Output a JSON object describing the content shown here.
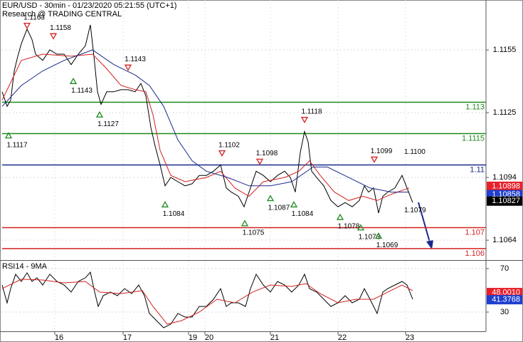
{
  "chart_data": [
    {
      "type": "line",
      "title": "EUR/USD - 30min - 01/23/2020 05:21:55 (UTC+1)",
      "subtitle": "Research @ TRADING CENTRAL",
      "xlim": [
        0,
        340
      ],
      "ylim": [
        1.10545,
        1.11789
      ],
      "yticks": [
        1.1155,
        1.1125,
        1.1094,
        1.1064
      ],
      "grid": true,
      "series": [
        {
          "color": "#000000",
          "x": [
            0,
            3.5,
            6,
            8.5,
            11,
            13.5,
            17.5,
            21,
            23.5,
            28.5,
            33.5,
            38.5,
            43.5,
            48.5,
            53.5,
            58.5,
            62,
            64.5,
            67,
            69.5,
            73.5,
            78.5,
            83.5,
            88.5,
            93.5,
            97.5,
            101,
            104.5,
            107.5,
            111,
            114.5,
            118.5,
            123.5,
            128.5,
            133.5,
            138.5,
            143.5,
            148.5,
            153.5,
            157.5,
            161,
            166,
            170,
            173.5,
            178.5,
            183.5,
            188.5,
            193.5,
            198.5,
            202.5,
            206,
            209.5,
            212.5,
            215,
            217.5,
            221,
            226,
            231,
            236,
            241,
            246,
            251,
            254.5,
            257.5,
            261,
            264.5,
            267.5,
            271,
            276,
            281,
            284.5,
            288.5
          ],
          "values": [
            1.1135,
            1.1128,
            1.1131,
            1.1145,
            1.1152,
            1.1158,
            1.1165,
            1.116,
            1.1153,
            1.115,
            1.1155,
            1.1153,
            1.1153,
            1.1148,
            1.1153,
            1.1157,
            1.1167,
            1.1152,
            1.1135,
            1.1129,
            1.1135,
            1.1135,
            1.1136,
            1.1136,
            1.1135,
            1.1139,
            1.1133,
            1.1118,
            1.1109,
            1.11,
            1.109,
            1.1094,
            1.1092,
            1.109,
            1.1091,
            1.1095,
            1.1095,
            1.1097,
            1.11,
            1.1089,
            1.1087,
            1.1085,
            1.108,
            1.1087,
            1.1097,
            1.1095,
            1.1092,
            1.1095,
            1.1097,
            1.1094,
            1.1087,
            1.1106,
            1.1116,
            1.1111,
            1.1097,
            1.1094,
            1.109,
            1.1083,
            1.108,
            1.1082,
            1.108,
            1.1083,
            1.109,
            1.1087,
            1.1089,
            1.1077,
            1.1085,
            1.1087,
            1.1089,
            1.1095,
            1.1089,
            1.1082
          ]
        },
        {
          "color": "#d42020",
          "x": [
            0,
            13.5,
            28.5,
            48.5,
            63.5,
            73.5,
            83.5,
            93.5,
            101,
            106,
            111,
            118.5,
            128.5,
            143.5,
            153.5,
            163.5,
            173.5,
            183.5,
            198.5,
            208.5,
            216,
            223.5,
            233.5,
            243.5,
            253.5,
            263.5,
            273.5,
            286
          ],
          "values": [
            1.1131,
            1.115,
            1.1153,
            1.1152,
            1.1153,
            1.1146,
            1.1138,
            1.1136,
            1.1135,
            1.1124,
            1.1107,
            1.1095,
            1.1092,
            1.1094,
            1.1097,
            1.1089,
            1.1085,
            1.1092,
            1.1094,
            1.1097,
            1.1102,
            1.1095,
            1.1087,
            1.1083,
            1.1085,
            1.1083,
            1.1086,
            1.1089
          ]
        },
        {
          "color": "#1b2a8a",
          "x": [
            0,
            13.5,
            28.5,
            43.5,
            63.5,
            78.5,
            93.5,
            103.5,
            113.5,
            123.5,
            133.5,
            143.5,
            158.5,
            173.5,
            188.5,
            203.5,
            218.5,
            228.5,
            243.5,
            258.5,
            273.5,
            286
          ],
          "values": [
            1.1128,
            1.1138,
            1.1145,
            1.115,
            1.1155,
            1.1148,
            1.1143,
            1.1138,
            1.1128,
            1.1112,
            1.1102,
            1.1097,
            1.1094,
            1.109,
            1.109,
            1.1092,
            1.1099,
            1.1099,
            1.1094,
            1.1089,
            1.1087,
            1.1087
          ]
        }
      ],
      "levels": [
        {
          "value": 1.113,
          "color": "#1f8a1f"
        },
        {
          "value": 1.1115,
          "color": "#1f8a1f"
        },
        {
          "value": 1.11,
          "color": "#1b2a8a"
        },
        {
          "value": 1.107,
          "color": "#d42020"
        },
        {
          "value": 1.106,
          "color": "#d42020"
        }
      ],
      "price_tags": [
        {
          "value": 1.10898,
          "color": "#e8202a"
        },
        {
          "value": 1.10858,
          "color": "#1e3fd0"
        },
        {
          "value": 1.10827,
          "color": "#000000"
        }
      ],
      "annotations": [
        {
          "price": 1.1163,
          "x": 17.5,
          "marker": "down"
        },
        {
          "price": 1.1158,
          "x": 36,
          "marker": "down"
        },
        {
          "price": 1.1143,
          "x": 50,
          "marker": "up"
        },
        {
          "price": 1.1143,
          "x": 88.5,
          "marker": "down"
        },
        {
          "price": 1.1127,
          "x": 68.5,
          "marker": "up"
        },
        {
          "price": 1.1117,
          "x": 4.5,
          "marker": "up"
        },
        {
          "price": 1.1102,
          "x": 154.5,
          "marker": "down"
        },
        {
          "price": 1.1098,
          "x": 181,
          "marker": "down"
        },
        {
          "price": 1.1118,
          "x": 212.5,
          "marker": "down"
        },
        {
          "price": 1.1099,
          "x": 261.5,
          "marker": "down"
        },
        {
          "price": {
            "value": 1.11,
            "label": "1.1100"
          },
          "x": 287.5
        },
        {
          "price": 1.1084,
          "x": 114.5,
          "marker": "up"
        },
        {
          "price": 1.1075,
          "x": 170.5,
          "marker": "up"
        },
        {
          "price": 1.1087,
          "x": 188.5,
          "marker": "up"
        },
        {
          "price": 1.1084,
          "x": 205,
          "marker": "up"
        },
        {
          "price": 1.1078,
          "x": 237.5,
          "marker": "up"
        },
        {
          "price": 1.1073,
          "x": 252,
          "marker": "up"
        },
        {
          "price": 1.1069,
          "x": 264.5,
          "marker": "up"
        },
        {
          "price": 1.1079,
          "x": 287.5
        }
      ]
    },
    {
      "type": "line",
      "title": "RSI14 - 9MA",
      "xlim": [
        0,
        340
      ],
      "ylim": [
        12.3,
        77.2
      ],
      "yticks": [
        70,
        30
      ],
      "xticks": [
        {
          "value": 37,
          "label": "16"
        },
        {
          "value": 85,
          "label": "17"
        },
        {
          "value": 131,
          "label": "19"
        },
        {
          "value": 142.5,
          "label": "20"
        },
        {
          "value": 188.5,
          "label": "21"
        },
        {
          "value": 236,
          "label": "22"
        },
        {
          "value": 283.5,
          "label": "23"
        }
      ],
      "grid": true,
      "series": [
        {
          "color": "#000000",
          "x": [
            0,
            3.5,
            6,
            9.5,
            13.5,
            17.5,
            21,
            24.5,
            28.5,
            33.5,
            38.5,
            43.5,
            48.5,
            53.5,
            58.5,
            62,
            65,
            67.5,
            71,
            76,
            81,
            86,
            91,
            96,
            100,
            103.5,
            108.5,
            113.5,
            118.5,
            123.5,
            128.5,
            133.5,
            138.5,
            143.5,
            148.5,
            153.5,
            157.5,
            161,
            166,
            171,
            174.5,
            178.5,
            183.5,
            188.5,
            193.5,
            198.5,
            203.5,
            208.5,
            212.5,
            216,
            221,
            226,
            231,
            236,
            241,
            246,
            251,
            254.5,
            258.5,
            263.5,
            267.5,
            271,
            276,
            281,
            284.5,
            288.5
          ],
          "values": [
            54.9,
            38.5,
            51.6,
            64.8,
            58.2,
            66.1,
            58.2,
            61.5,
            54.9,
            64.8,
            58.2,
            54.9,
            48.4,
            58.2,
            61.5,
            66.7,
            48.4,
            35.2,
            45.1,
            48.4,
            45.1,
            51.6,
            47,
            54.9,
            45.1,
            28.7,
            22.1,
            15.6,
            18.9,
            28.7,
            25.4,
            25.4,
            35.2,
            35.2,
            41.8,
            51.6,
            35.2,
            38.5,
            38.5,
            35.2,
            51.6,
            64.8,
            54.9,
            48.4,
            58.2,
            54.9,
            48.4,
            54.9,
            64.8,
            51.6,
            48.4,
            41.8,
            35.2,
            38.5,
            45.1,
            38.5,
            41.8,
            51.6,
            41.8,
            28.7,
            48.4,
            51.6,
            54.9,
            58.2,
            54.9,
            41.8
          ]
        },
        {
          "color": "#d42020",
          "x": [
            0,
            13.5,
            28.5,
            43.5,
            58.5,
            68.5,
            83.5,
            98.5,
            106,
            116,
            126,
            138.5,
            151,
            163.5,
            176,
            188.5,
            203.5,
            213.5,
            223.5,
            236,
            248.5,
            261,
            271,
            281,
            288.5
          ],
          "values": [
            51.6,
            60.2,
            59.5,
            56.9,
            58.2,
            48.4,
            47,
            49.7,
            35.2,
            18.9,
            22.1,
            30,
            41.8,
            38.5,
            48.4,
            54.9,
            53.6,
            56.2,
            47,
            38.5,
            41.8,
            41.8,
            48.4,
            54.9,
            49.7
          ]
        }
      ],
      "price_tags": [
        {
          "value": {
            "value": 48.001,
            "label": "48.0010"
          },
          "color": "#e8202a"
        },
        {
          "value": 41.3768,
          "color": "#1e3fd0"
        }
      ]
    }
  ]
}
